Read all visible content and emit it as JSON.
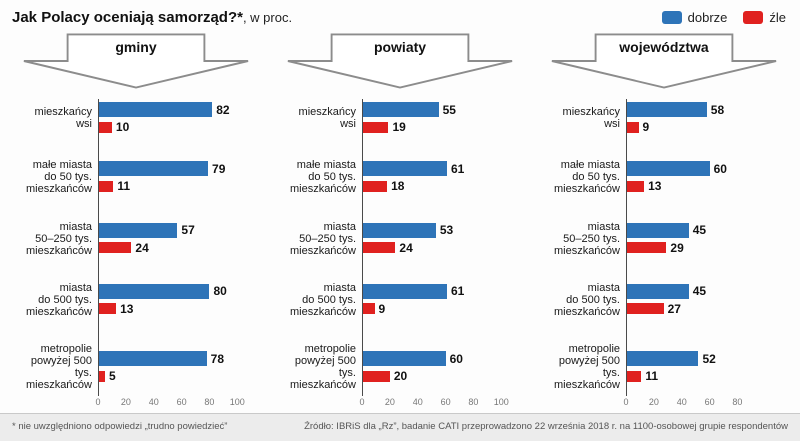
{
  "title": "Jak Polacy oceniają samorząd?*",
  "title_suffix": ", w proc.",
  "legend": [
    {
      "label": "dobrze",
      "color": "#2e74b8"
    },
    {
      "label": "źle",
      "color": "#e0211f"
    }
  ],
  "footnote": "* nie uwzględniono odpowiedzi „trudno powiedzieć”",
  "source": "Źródło: IBRiS dla „Rz”, badanie CATI przeprowadzono 22 września 2018 r. na 1100-osobowej grupie respondentów",
  "chart_data": [
    {
      "type": "bar",
      "orientation": "horizontal",
      "title": "gminy",
      "categories": [
        "mieszkańcy\nwsi",
        "małe miasta\ndo 50 tys.\nmieszkańców",
        "miasta\n50–250 tys.\nmieszkańców",
        "miasta\ndo 500 tys.\nmieszkańców",
        "metropolie\npowyżej 500 tys.\nmieszkańców"
      ],
      "series": [
        {
          "name": "dobrze",
          "values": [
            82,
            79,
            57,
            80,
            78
          ]
        },
        {
          "name": "źle",
          "values": [
            10,
            11,
            24,
            13,
            5
          ]
        }
      ],
      "xlim": [
        0,
        100
      ],
      "xticks": [
        0,
        20,
        40,
        60,
        80,
        100
      ],
      "grid": false
    },
    {
      "type": "bar",
      "orientation": "horizontal",
      "title": "powiaty",
      "categories": [
        "mieszkańcy\nwsi",
        "małe miasta\ndo 50 tys.\nmieszkańców",
        "miasta\n50–250 tys.\nmieszkańców",
        "miasta\ndo 500 tys.\nmieszkańców",
        "metropolie\npowyżej 500 tys.\nmieszkańców"
      ],
      "series": [
        {
          "name": "dobrze",
          "values": [
            55,
            61,
            53,
            61,
            60
          ]
        },
        {
          "name": "źle",
          "values": [
            19,
            18,
            24,
            9,
            20
          ]
        }
      ],
      "xlim": [
        0,
        100
      ],
      "xticks": [
        0,
        20,
        40,
        60,
        80,
        100
      ],
      "grid": false
    },
    {
      "type": "bar",
      "orientation": "horizontal",
      "title": "województwa",
      "categories": [
        "mieszkańcy\nwsi",
        "małe miasta\ndo 50 tys.\nmieszkańców",
        "miasta\n50–250 tys.\nmieszkańców",
        "miasta\ndo 500 tys.\nmieszkańców",
        "metropolie\npowyżej 500 tys.\nmieszkańców"
      ],
      "series": [
        {
          "name": "dobrze",
          "values": [
            58,
            60,
            45,
            45,
            52
          ]
        },
        {
          "name": "źle",
          "values": [
            9,
            13,
            29,
            27,
            11
          ]
        }
      ],
      "xlim": [
        0,
        100
      ],
      "xticks": [
        0,
        20,
        40,
        60,
        80
      ],
      "grid": false
    }
  ]
}
